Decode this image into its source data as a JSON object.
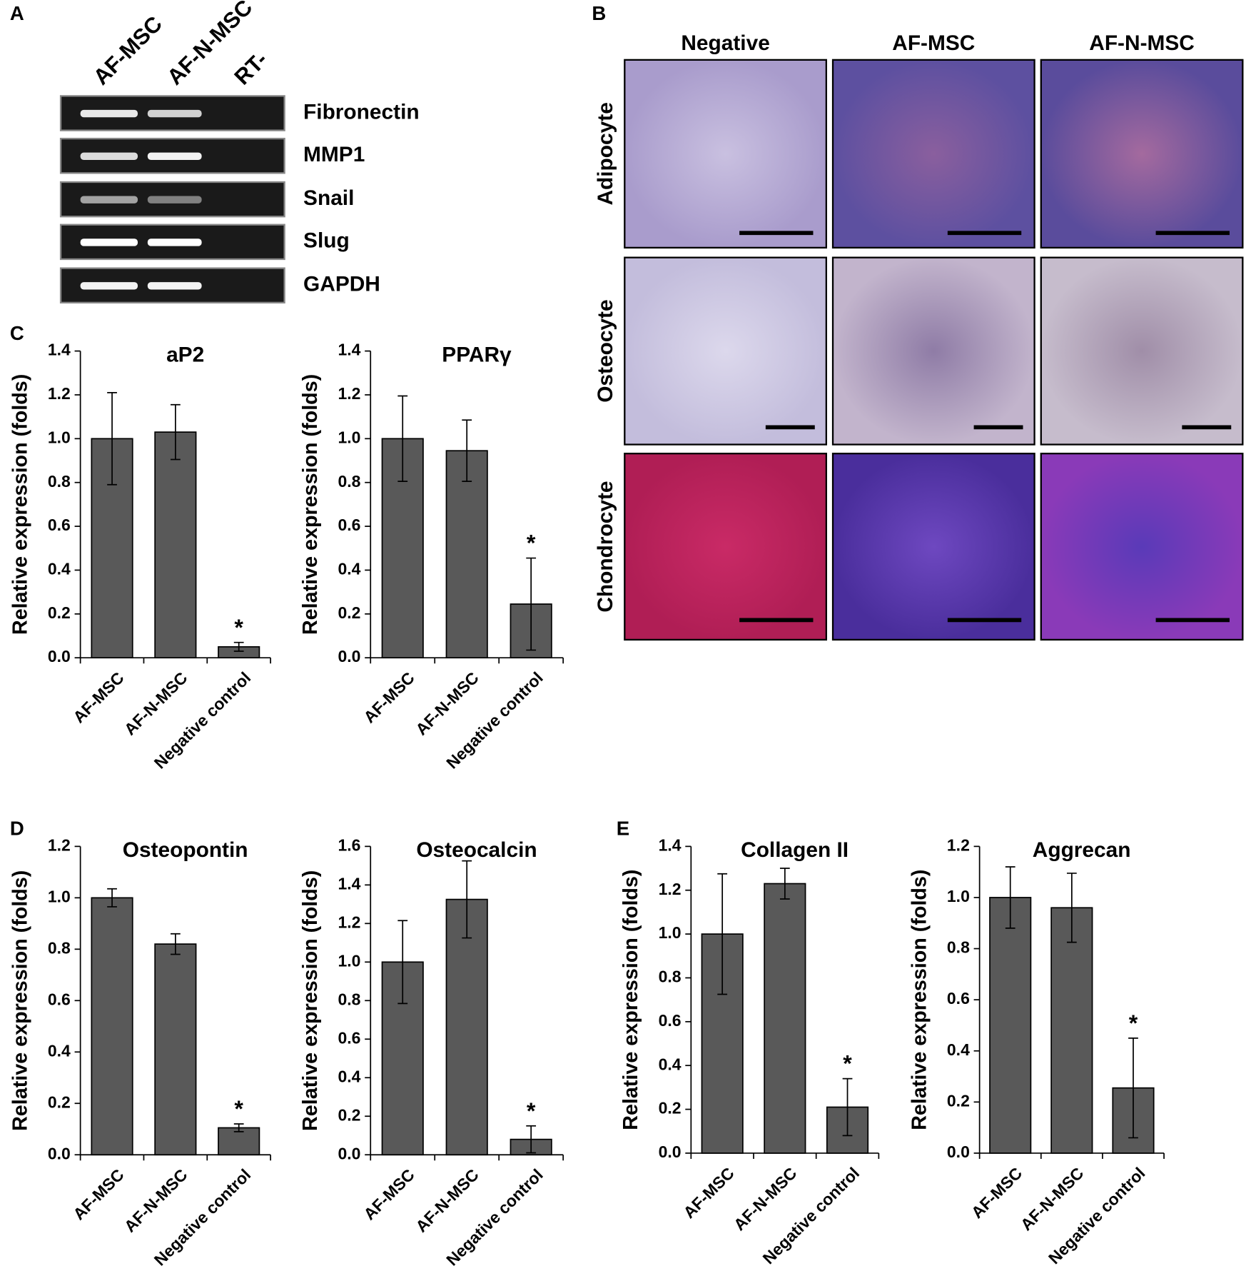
{
  "panel_labels": [
    "A",
    "B",
    "C",
    "D",
    "E"
  ],
  "gel": {
    "lanes": [
      "AF-MSC",
      "AF-N-MSC",
      "RT-"
    ],
    "genes": [
      "Fibronectin",
      "MMP1",
      "Snail",
      "Slug",
      "GAPDH"
    ]
  },
  "histology": {
    "columns": [
      "Negative",
      "AF-MSC",
      "AF-N-MSC"
    ],
    "rows": [
      "Adipocyte",
      "Osteocyte",
      "Chondrocyte"
    ]
  },
  "chart_data": [
    {
      "type": "bar",
      "title": "aP2",
      "y_label": "Relative expression (folds)",
      "categories": [
        "AF-MSC",
        "AF-N-MSC",
        "Negative control"
      ],
      "values": [
        1.0,
        1.03,
        0.05
      ],
      "errors": [
        0.21,
        0.125,
        0.02
      ],
      "color": "#595959",
      "ylim": [
        0,
        1.4
      ],
      "yticks": [
        {
          "value": 0,
          "label": "0.0"
        },
        0.2,
        0.4,
        0.6,
        0.8,
        {
          "value": 1,
          "label": "1.0"
        },
        1.2,
        1.4
      ],
      "annotations": [
        {
          "category": "Negative control",
          "text": "*"
        }
      ]
    },
    {
      "type": "bar",
      "title": "PPARγ",
      "y_label": "Relative expression (folds)",
      "categories": [
        "AF-MSC",
        "AF-N-MSC",
        "Negative control"
      ],
      "values": [
        1.0,
        0.945,
        0.245
      ],
      "errors": [
        0.195,
        0.14,
        0.21
      ],
      "color": "#595959",
      "ylim": [
        0,
        1.4
      ],
      "yticks": [
        {
          "value": 0,
          "label": "0.0"
        },
        0.2,
        0.4,
        0.6,
        0.8,
        {
          "value": 1,
          "label": "1.0"
        },
        1.2,
        1.4
      ],
      "annotations": [
        {
          "category": "Negative control",
          "text": "*"
        }
      ]
    },
    {
      "type": "bar",
      "title": "Osteopontin",
      "y_label": "Relative expression (folds)",
      "categories": [
        "AF-MSC",
        "AF-N-MSC",
        "Negative control"
      ],
      "values": [
        1.0,
        0.82,
        0.105
      ],
      "errors": [
        0.035,
        0.04,
        0.015
      ],
      "color": "#595959",
      "ylim": [
        0,
        1.2
      ],
      "yticks": [
        {
          "value": 0,
          "label": "0.0"
        },
        0.2,
        0.4,
        0.6,
        0.8,
        {
          "value": 1,
          "label": "1.0"
        },
        1.2
      ],
      "annotations": [
        {
          "category": "Negative control",
          "text": "*"
        }
      ]
    },
    {
      "type": "bar",
      "title": "Osteocalcin",
      "y_label": "Relative expression (folds)",
      "categories": [
        "AF-MSC",
        "AF-N-MSC",
        "Negative control"
      ],
      "values": [
        1.0,
        1.325,
        0.08
      ],
      "errors": [
        0.215,
        0.2,
        0.07
      ],
      "color": "#595959",
      "ylim": [
        0,
        1.6
      ],
      "yticks": [
        {
          "value": 0,
          "label": "0.0"
        },
        0.2,
        0.4,
        0.6,
        0.8,
        {
          "value": 1,
          "label": "1.0"
        },
        1.2,
        1.4,
        1.6
      ],
      "annotations": [
        {
          "category": "Negative control",
          "text": "*"
        }
      ]
    },
    {
      "type": "bar",
      "title": "Collagen II",
      "y_label": "Relative expression (folds)",
      "categories": [
        "AF-MSC",
        "AF-N-MSC",
        "Negative control"
      ],
      "values": [
        1.0,
        1.23,
        0.21
      ],
      "errors": [
        0.275,
        0.07,
        0.13
      ],
      "color": "#595959",
      "ylim": [
        0,
        1.4
      ],
      "yticks": [
        {
          "value": 0,
          "label": "0.0"
        },
        0.2,
        0.4,
        0.6,
        0.8,
        {
          "value": 1,
          "label": "1.0"
        },
        1.2,
        1.4
      ],
      "annotations": [
        {
          "category": "Negative control",
          "text": "*"
        }
      ]
    },
    {
      "type": "bar",
      "title": "Aggrecan",
      "y_label": "Relative expression (folds)",
      "categories": [
        "AF-MSC",
        "AF-N-MSC",
        "Negative control"
      ],
      "values": [
        1.0,
        0.96,
        0.255
      ],
      "errors": [
        0.12,
        0.135,
        0.195
      ],
      "color": "#595959",
      "ylim": [
        0,
        1.2
      ],
      "yticks": [
        {
          "value": 0,
          "label": "0.0"
        },
        0.2,
        0.4,
        0.6,
        0.8,
        {
          "value": 1,
          "label": "1.0"
        },
        1.2
      ],
      "annotations": [
        {
          "category": "Negative control",
          "text": "*"
        }
      ]
    }
  ]
}
